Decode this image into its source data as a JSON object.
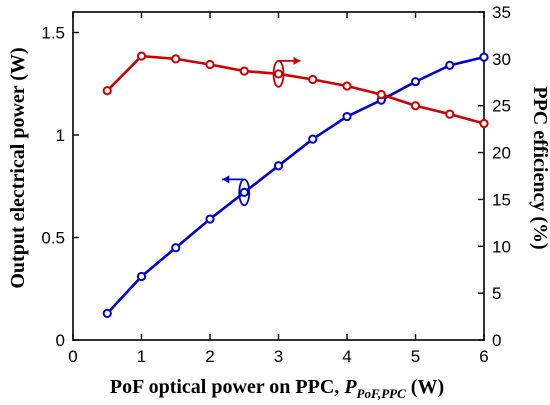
{
  "chart_data": {
    "type": "line",
    "xlabel_main": "PoF optical power on PPC, ",
    "xlabel_var": "P",
    "xlabel_sub": "PoF,PPC",
    "xlabel_unit": " (W)",
    "ylabel_left": "Output electrical power (W)",
    "ylabel_right": "PPC efficiency (%)",
    "xlim": [
      0,
      6
    ],
    "ylim_left": [
      0,
      1.6
    ],
    "ylim_right": [
      0,
      35
    ],
    "x_ticks": [
      0,
      1,
      2,
      3,
      4,
      5,
      6
    ],
    "x_tick_labels": [
      "0",
      "1",
      "2",
      "3",
      "4",
      "5",
      "6"
    ],
    "y_left_ticks": [
      0,
      0.5,
      1,
      1.5
    ],
    "y_left_tick_labels": [
      "0",
      "0.5",
      "1",
      "1.5"
    ],
    "y_right_ticks": [
      0,
      5,
      10,
      15,
      20,
      25,
      30,
      35
    ],
    "y_right_tick_labels": [
      "0",
      "5",
      "10",
      "15",
      "20",
      "25",
      "30",
      "35"
    ],
    "grid": false,
    "legend": "none",
    "x": [
      0.5,
      1.0,
      1.5,
      2.0,
      2.5,
      3.0,
      3.5,
      4.0,
      4.5,
      5.0,
      5.5,
      6.0
    ],
    "series": [
      {
        "axis": "left",
        "color": "#0000cc",
        "marker": "open-circle",
        "values": [
          0.13,
          0.31,
          0.45,
          0.59,
          0.72,
          0.85,
          0.98,
          1.09,
          1.17,
          1.26,
          1.34,
          1.38
        ]
      },
      {
        "axis": "right",
        "color": "#cc0000",
        "marker": "open-circle",
        "values": [
          26.6,
          30.3,
          30.0,
          29.4,
          28.7,
          28.4,
          27.8,
          27.1,
          26.2,
          25.0,
          24.1,
          23.1
        ]
      }
    ],
    "annotations": [
      {
        "type": "curved-arrow",
        "points_to": "right-axis",
        "series": 1,
        "x": 3.0,
        "y": 28.4,
        "color": "#cc0000"
      },
      {
        "type": "curved-arrow",
        "points_to": "left-axis",
        "series": 0,
        "x": 2.5,
        "y": 0.72,
        "color": "#0000cc"
      }
    ]
  }
}
